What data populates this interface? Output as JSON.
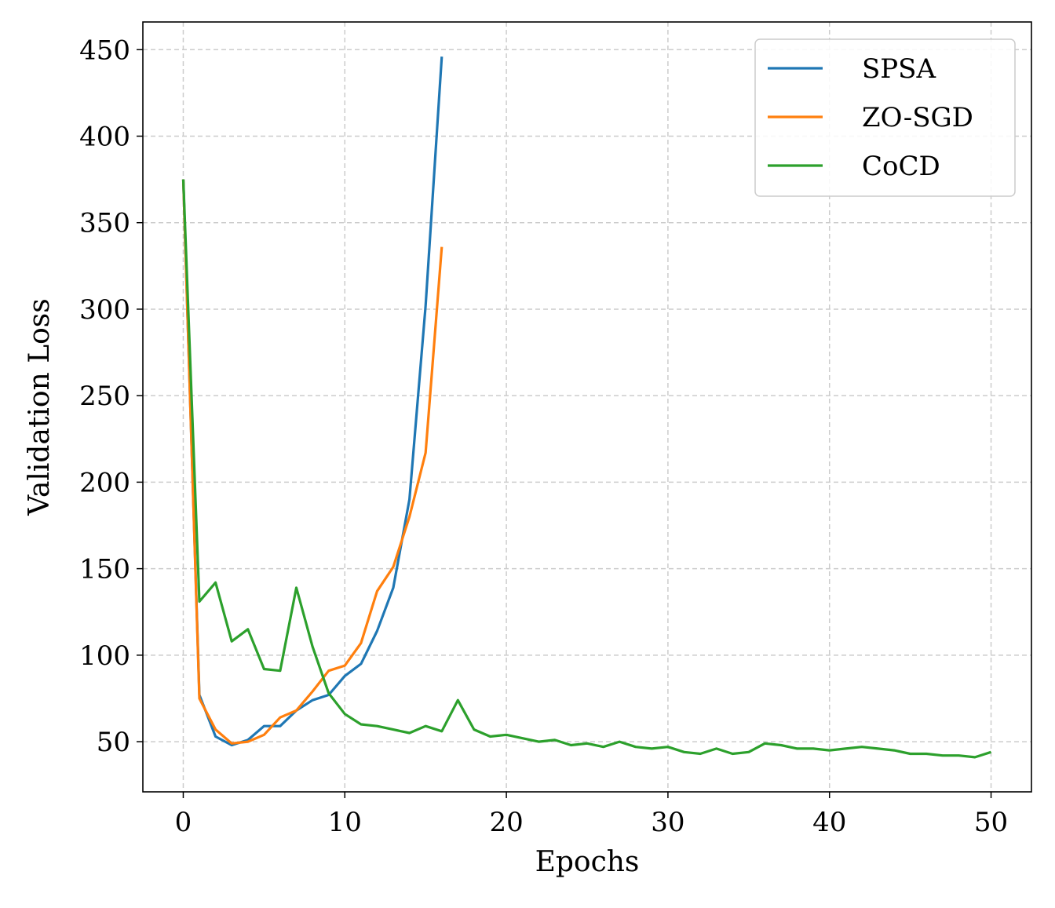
{
  "chart_data": {
    "type": "line",
    "title": "",
    "xlabel": "Epochs",
    "ylabel": "Validation Loss",
    "xlim": [
      -2.5,
      52.5
    ],
    "ylim": [
      21,
      466
    ],
    "xticks": [
      0,
      10,
      20,
      30,
      40,
      50
    ],
    "yticks": [
      50,
      100,
      150,
      200,
      250,
      300,
      350,
      400,
      450
    ],
    "grid": true,
    "legend_position": "top-right",
    "series": [
      {
        "name": "SPSA",
        "color": "#1f77b4",
        "x": [
          0,
          1,
          2,
          3,
          4,
          5,
          6,
          7,
          8,
          9,
          10,
          11,
          12,
          13,
          14,
          15,
          16
        ],
        "y": [
          375,
          77,
          53,
          48,
          51,
          59,
          59,
          68,
          74,
          77,
          88,
          95,
          114,
          139,
          190,
          302,
          446
        ]
      },
      {
        "name": "ZO-SGD",
        "color": "#ff7f0e",
        "x": [
          0,
          1,
          2,
          3,
          4,
          5,
          6,
          7,
          8,
          9,
          10,
          11,
          12,
          13,
          14,
          15,
          16
        ],
        "y": [
          375,
          75,
          57,
          49,
          50,
          54,
          64,
          68,
          79,
          91,
          94,
          107,
          137,
          151,
          180,
          217,
          336
        ]
      },
      {
        "name": "CoCD",
        "color": "#2ca02c",
        "x": [
          0,
          1,
          2,
          3,
          4,
          5,
          6,
          7,
          8,
          9,
          10,
          11,
          12,
          13,
          14,
          15,
          16,
          17,
          18,
          19,
          20,
          21,
          22,
          23,
          24,
          25,
          26,
          27,
          28,
          29,
          30,
          31,
          32,
          33,
          34,
          35,
          36,
          37,
          38,
          39,
          40,
          41,
          42,
          43,
          44,
          45,
          46,
          47,
          48,
          49,
          50
        ],
        "y": [
          375,
          131,
          142,
          108,
          115,
          92,
          91,
          139,
          105,
          78,
          66,
          60,
          59,
          57,
          55,
          59,
          56,
          74,
          57,
          53,
          54,
          52,
          50,
          51,
          48,
          49,
          47,
          50,
          47,
          46,
          47,
          44,
          43,
          46,
          43,
          44,
          49,
          48,
          46,
          46,
          45,
          46,
          47,
          46,
          45,
          43,
          43,
          42,
          42,
          41,
          44
        ]
      }
    ]
  }
}
